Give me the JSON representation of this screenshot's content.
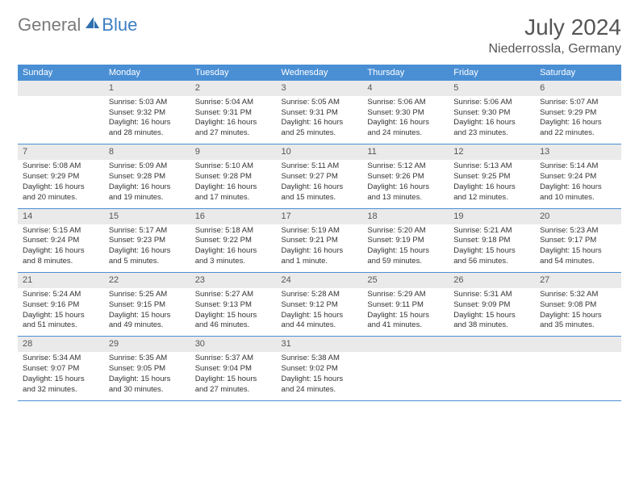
{
  "logo": {
    "general": "General",
    "blue": "Blue"
  },
  "title": "July 2024",
  "location": "Niederrossla, Germany",
  "colors": {
    "header_bg": "#4a8fd4",
    "header_fg": "#ffffff",
    "daynum_bg": "#eaeaea",
    "border": "#4a8fd4",
    "logo_gray": "#7a7a7a",
    "logo_blue": "#3d7fc2"
  },
  "weekdays": [
    "Sunday",
    "Monday",
    "Tuesday",
    "Wednesday",
    "Thursday",
    "Friday",
    "Saturday"
  ],
  "weeks": [
    {
      "nums": [
        "",
        "1",
        "2",
        "3",
        "4",
        "5",
        "6"
      ],
      "cells": [
        null,
        {
          "sr": "Sunrise: 5:03 AM",
          "ss": "Sunset: 9:32 PM",
          "d1": "Daylight: 16 hours",
          "d2": "and 28 minutes."
        },
        {
          "sr": "Sunrise: 5:04 AM",
          "ss": "Sunset: 9:31 PM",
          "d1": "Daylight: 16 hours",
          "d2": "and 27 minutes."
        },
        {
          "sr": "Sunrise: 5:05 AM",
          "ss": "Sunset: 9:31 PM",
          "d1": "Daylight: 16 hours",
          "d2": "and 25 minutes."
        },
        {
          "sr": "Sunrise: 5:06 AM",
          "ss": "Sunset: 9:30 PM",
          "d1": "Daylight: 16 hours",
          "d2": "and 24 minutes."
        },
        {
          "sr": "Sunrise: 5:06 AM",
          "ss": "Sunset: 9:30 PM",
          "d1": "Daylight: 16 hours",
          "d2": "and 23 minutes."
        },
        {
          "sr": "Sunrise: 5:07 AM",
          "ss": "Sunset: 9:29 PM",
          "d1": "Daylight: 16 hours",
          "d2": "and 22 minutes."
        }
      ]
    },
    {
      "nums": [
        "7",
        "8",
        "9",
        "10",
        "11",
        "12",
        "13"
      ],
      "cells": [
        {
          "sr": "Sunrise: 5:08 AM",
          "ss": "Sunset: 9:29 PM",
          "d1": "Daylight: 16 hours",
          "d2": "and 20 minutes."
        },
        {
          "sr": "Sunrise: 5:09 AM",
          "ss": "Sunset: 9:28 PM",
          "d1": "Daylight: 16 hours",
          "d2": "and 19 minutes."
        },
        {
          "sr": "Sunrise: 5:10 AM",
          "ss": "Sunset: 9:28 PM",
          "d1": "Daylight: 16 hours",
          "d2": "and 17 minutes."
        },
        {
          "sr": "Sunrise: 5:11 AM",
          "ss": "Sunset: 9:27 PM",
          "d1": "Daylight: 16 hours",
          "d2": "and 15 minutes."
        },
        {
          "sr": "Sunrise: 5:12 AM",
          "ss": "Sunset: 9:26 PM",
          "d1": "Daylight: 16 hours",
          "d2": "and 13 minutes."
        },
        {
          "sr": "Sunrise: 5:13 AM",
          "ss": "Sunset: 9:25 PM",
          "d1": "Daylight: 16 hours",
          "d2": "and 12 minutes."
        },
        {
          "sr": "Sunrise: 5:14 AM",
          "ss": "Sunset: 9:24 PM",
          "d1": "Daylight: 16 hours",
          "d2": "and 10 minutes."
        }
      ]
    },
    {
      "nums": [
        "14",
        "15",
        "16",
        "17",
        "18",
        "19",
        "20"
      ],
      "cells": [
        {
          "sr": "Sunrise: 5:15 AM",
          "ss": "Sunset: 9:24 PM",
          "d1": "Daylight: 16 hours",
          "d2": "and 8 minutes."
        },
        {
          "sr": "Sunrise: 5:17 AM",
          "ss": "Sunset: 9:23 PM",
          "d1": "Daylight: 16 hours",
          "d2": "and 5 minutes."
        },
        {
          "sr": "Sunrise: 5:18 AM",
          "ss": "Sunset: 9:22 PM",
          "d1": "Daylight: 16 hours",
          "d2": "and 3 minutes."
        },
        {
          "sr": "Sunrise: 5:19 AM",
          "ss": "Sunset: 9:21 PM",
          "d1": "Daylight: 16 hours",
          "d2": "and 1 minute."
        },
        {
          "sr": "Sunrise: 5:20 AM",
          "ss": "Sunset: 9:19 PM",
          "d1": "Daylight: 15 hours",
          "d2": "and 59 minutes."
        },
        {
          "sr": "Sunrise: 5:21 AM",
          "ss": "Sunset: 9:18 PM",
          "d1": "Daylight: 15 hours",
          "d2": "and 56 minutes."
        },
        {
          "sr": "Sunrise: 5:23 AM",
          "ss": "Sunset: 9:17 PM",
          "d1": "Daylight: 15 hours",
          "d2": "and 54 minutes."
        }
      ]
    },
    {
      "nums": [
        "21",
        "22",
        "23",
        "24",
        "25",
        "26",
        "27"
      ],
      "cells": [
        {
          "sr": "Sunrise: 5:24 AM",
          "ss": "Sunset: 9:16 PM",
          "d1": "Daylight: 15 hours",
          "d2": "and 51 minutes."
        },
        {
          "sr": "Sunrise: 5:25 AM",
          "ss": "Sunset: 9:15 PM",
          "d1": "Daylight: 15 hours",
          "d2": "and 49 minutes."
        },
        {
          "sr": "Sunrise: 5:27 AM",
          "ss": "Sunset: 9:13 PM",
          "d1": "Daylight: 15 hours",
          "d2": "and 46 minutes."
        },
        {
          "sr": "Sunrise: 5:28 AM",
          "ss": "Sunset: 9:12 PM",
          "d1": "Daylight: 15 hours",
          "d2": "and 44 minutes."
        },
        {
          "sr": "Sunrise: 5:29 AM",
          "ss": "Sunset: 9:11 PM",
          "d1": "Daylight: 15 hours",
          "d2": "and 41 minutes."
        },
        {
          "sr": "Sunrise: 5:31 AM",
          "ss": "Sunset: 9:09 PM",
          "d1": "Daylight: 15 hours",
          "d2": "and 38 minutes."
        },
        {
          "sr": "Sunrise: 5:32 AM",
          "ss": "Sunset: 9:08 PM",
          "d1": "Daylight: 15 hours",
          "d2": "and 35 minutes."
        }
      ]
    },
    {
      "nums": [
        "28",
        "29",
        "30",
        "31",
        "",
        "",
        ""
      ],
      "cells": [
        {
          "sr": "Sunrise: 5:34 AM",
          "ss": "Sunset: 9:07 PM",
          "d1": "Daylight: 15 hours",
          "d2": "and 32 minutes."
        },
        {
          "sr": "Sunrise: 5:35 AM",
          "ss": "Sunset: 9:05 PM",
          "d1": "Daylight: 15 hours",
          "d2": "and 30 minutes."
        },
        {
          "sr": "Sunrise: 5:37 AM",
          "ss": "Sunset: 9:04 PM",
          "d1": "Daylight: 15 hours",
          "d2": "and 27 minutes."
        },
        {
          "sr": "Sunrise: 5:38 AM",
          "ss": "Sunset: 9:02 PM",
          "d1": "Daylight: 15 hours",
          "d2": "and 24 minutes."
        },
        null,
        null,
        null
      ]
    }
  ]
}
